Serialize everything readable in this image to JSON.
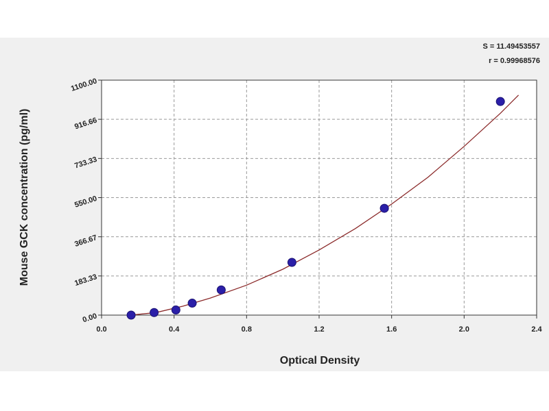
{
  "stats": {
    "s_text": "S = 11.49453557",
    "r_text": "r = 0.99968576"
  },
  "colors": {
    "background": "#f0f0f0",
    "plot_area": "#ffffff",
    "curve": "#8b2a2a",
    "point_fill": "#2b1fa8",
    "grid": "#999999"
  },
  "chart_data": {
    "type": "scatter",
    "xlabel": "Optical Density",
    "ylabel": "Mouse GCK concentration (pg/ml)",
    "xlim": [
      0.0,
      2.4
    ],
    "ylim": [
      0.0,
      1100.0
    ],
    "x_ticks": [
      0.0,
      0.4,
      0.8,
      1.2,
      1.6,
      2.0,
      2.4
    ],
    "x_tick_labels": [
      "0.0",
      "0.4",
      "0.8",
      "1.2",
      "1.6",
      "2.0",
      "2.4"
    ],
    "y_ticks": [
      0.0,
      183.33,
      366.67,
      550.0,
      733.33,
      916.66,
      1100.0
    ],
    "y_tick_labels": [
      "0.00",
      "183.33",
      "366.67",
      "550.00",
      "733.33",
      "916.66",
      "1100.00"
    ],
    "grid": true,
    "series": [
      {
        "type": "scatter",
        "x": [
          0.163,
          0.29,
          0.41,
          0.5,
          0.66,
          1.05,
          1.56,
          2.2
        ],
        "y": [
          0,
          12,
          24,
          56,
          118,
          247,
          500,
          1000
        ]
      },
      {
        "type": "line",
        "x": [
          0.16,
          0.3,
          0.45,
          0.6,
          0.8,
          1.0,
          1.2,
          1.4,
          1.6,
          1.8,
          2.0,
          2.2,
          2.3
        ],
        "y": [
          0,
          12,
          42,
          80,
          140,
          215,
          305,
          405,
          520,
          645,
          790,
          945,
          1030
        ]
      }
    ]
  }
}
